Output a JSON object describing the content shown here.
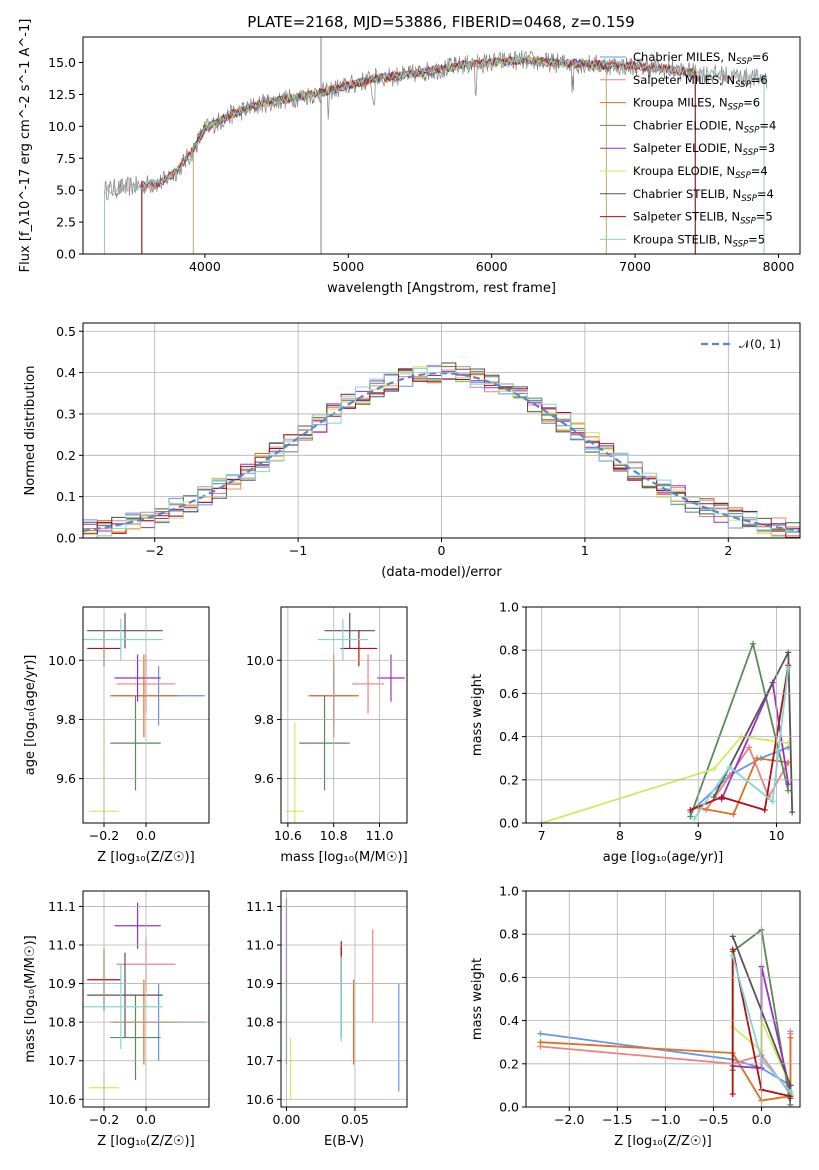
{
  "title": "PLATE=2168, MJD=53886, FIBERID=0468, z=0.159",
  "colors": [
    "#6495ed",
    "#f08080",
    "#e07020",
    "#5a8a5a",
    "#9b30c0",
    "#d4e860",
    "#555555",
    "#b01010",
    "#80d8d8"
  ],
  "chart_data": [
    {
      "id": "spectrum",
      "type": "line",
      "xlabel": "wavelength [Angstrom, rest frame]",
      "ylabel": "Flux [f_λ10^-17 erg cm^-2 s^-1 A^-1]",
      "xlim": [
        3150,
        8150
      ],
      "ylim": [
        0,
        17
      ],
      "xticks": [
        "4000",
        "5000",
        "6000",
        "7000",
        "8000"
      ],
      "yticks": [
        "0.0",
        "2.5",
        "5.0",
        "7.5",
        "10.0",
        "12.5",
        "15.0"
      ],
      "grid": false,
      "legend_position": "right",
      "legend": [
        {
          "label": "Chabrier MILES, N",
          "sub": "SSP",
          "tail": "=6"
        },
        {
          "label": "Salpeter MILES, N",
          "sub": "SSP",
          "tail": "=6"
        },
        {
          "label": "Kroupa MILES, N",
          "sub": "SSP",
          "tail": "=6"
        },
        {
          "label": "Chabrier ELODIE, N",
          "sub": "SSP",
          "tail": "=4"
        },
        {
          "label": "Salpeter ELODIE, N",
          "sub": "SSP",
          "tail": "=3"
        },
        {
          "label": "Kroupa ELODIE, N",
          "sub": "SSP",
          "tail": "=4"
        },
        {
          "label": "Chabrier STELIB, N",
          "sub": "SSP",
          "tail": "=4"
        },
        {
          "label": "Salpeter STELIB, N",
          "sub": "SSP",
          "tail": "=5"
        },
        {
          "label": "Kroupa STELIB, N",
          "sub": "SSP",
          "tail": "=5"
        }
      ],
      "continuum": [
        [
          3300,
          5.0
        ],
        [
          3500,
          5.3
        ],
        [
          3700,
          5.6
        ],
        [
          3800,
          6.5
        ],
        [
          3900,
          7.8
        ],
        [
          4000,
          9.8
        ],
        [
          4200,
          11.0
        ],
        [
          4400,
          11.8
        ],
        [
          4600,
          12.2
        ],
        [
          4800,
          12.6
        ],
        [
          5000,
          13.2
        ],
        [
          5200,
          13.8
        ],
        [
          5400,
          14.0
        ],
        [
          5600,
          14.4
        ],
        [
          5800,
          14.8
        ],
        [
          6000,
          15.0
        ],
        [
          6200,
          15.2
        ],
        [
          6400,
          15.0
        ],
        [
          6600,
          14.9
        ],
        [
          6800,
          14.8
        ],
        [
          7000,
          14.7
        ],
        [
          7200,
          14.5
        ],
        [
          7400,
          14.2
        ],
        [
          7600,
          14.0
        ],
        [
          7800,
          13.8
        ],
        [
          7900,
          13.7
        ]
      ],
      "model_ranges": [
        [
          3560,
          7420
        ],
        [
          3300,
          7900
        ],
        [
          3560,
          7420
        ],
        [
          3920,
          6800
        ],
        [
          3920,
          6800
        ],
        [
          3920,
          6800
        ],
        [
          3560,
          7420
        ],
        [
          3560,
          7420
        ],
        [
          3300,
          7900
        ]
      ],
      "spike_x": 4810
    },
    {
      "id": "residuals",
      "type": "line",
      "xlabel": "(data-model)/error",
      "ylabel": "Normed distribution",
      "xlim": [
        -2.5,
        2.5
      ],
      "ylim": [
        0,
        0.52
      ],
      "xticks": [
        "−2",
        "−1",
        "0",
        "1",
        "2"
      ],
      "yticks": [
        "0.0",
        "0.1",
        "0.2",
        "0.3",
        "0.4",
        "0.5"
      ],
      "grid": true,
      "legend_position": "top-right",
      "series_name": "𝒩(0, 1)"
    },
    {
      "id": "age-vs-z",
      "type": "scatter",
      "xlabel": "Z [log₁₀(Z/Z☉)]",
      "ylabel": "age [log₁₀(age/yr)]",
      "xlim": [
        -0.3,
        0.3
      ],
      "ylim": [
        9.45,
        10.18
      ],
      "xticks": [
        "−0.2",
        "0.0"
      ],
      "yticks": [
        "9.6",
        "9.8",
        "10.0"
      ],
      "grid": true,
      "points": [
        {
          "x": 0.06,
          "y": 9.88,
          "xerr": 0.22,
          "yerr": 0.1
        },
        {
          "x": 0.0,
          "y": 9.92,
          "xerr": 0.14,
          "yerr": 0.1
        },
        {
          "x": -0.01,
          "y": 9.88,
          "xerr": 0.16,
          "yerr": 0.14
        },
        {
          "x": -0.05,
          "y": 9.72,
          "xerr": 0.12,
          "yerr": 0.16
        },
        {
          "x": -0.04,
          "y": 9.94,
          "xerr": 0.11,
          "yerr": 0.08
        },
        {
          "x": -0.2,
          "y": 9.49,
          "xerr": 0.07,
          "yerr": 0.3
        },
        {
          "x": -0.1,
          "y": 10.1,
          "xerr": 0.18,
          "yerr": 0.06
        },
        {
          "x": -0.2,
          "y": 10.04,
          "xerr": 0.08,
          "yerr": 0.06
        },
        {
          "x": -0.12,
          "y": 10.07,
          "xerr": 0.2,
          "yerr": 0.07
        }
      ]
    },
    {
      "id": "age-vs-mass",
      "type": "scatter",
      "xlabel": "mass [log₁₀(M/M☉)]",
      "ylabel": "",
      "xlim": [
        10.57,
        11.12
      ],
      "ylim": [
        9.45,
        10.18
      ],
      "xticks": [
        "10.6",
        "10.8",
        "11.0"
      ],
      "yticks": [
        "9.6",
        "9.8",
        "10.0"
      ],
      "grid": true,
      "points": [
        {
          "x": 10.8,
          "y": 9.88,
          "xerr": 0.1,
          "yerr": 0.1
        },
        {
          "x": 10.95,
          "y": 9.92,
          "xerr": 0.07,
          "yerr": 0.1
        },
        {
          "x": 10.8,
          "y": 9.88,
          "xerr": 0.11,
          "yerr": 0.14
        },
        {
          "x": 10.76,
          "y": 9.72,
          "xerr": 0.11,
          "yerr": 0.16
        },
        {
          "x": 11.05,
          "y": 9.94,
          "xerr": 0.06,
          "yerr": 0.08
        },
        {
          "x": 10.63,
          "y": 9.49,
          "xerr": 0.04,
          "yerr": 0.3
        },
        {
          "x": 10.87,
          "y": 10.1,
          "xerr": 0.11,
          "yerr": 0.06
        },
        {
          "x": 10.91,
          "y": 10.04,
          "xerr": 0.08,
          "yerr": 0.06
        },
        {
          "x": 10.84,
          "y": 10.07,
          "xerr": 0.11,
          "yerr": 0.07
        }
      ]
    },
    {
      "id": "weight-vs-age",
      "type": "line",
      "xlabel": "age [log₁₀(age/yr)]",
      "ylabel": "mass weight",
      "xlim": [
        6.8,
        10.3
      ],
      "ylim": [
        0,
        1.0
      ],
      "xticks": [
        "7",
        "8",
        "9",
        "10"
      ],
      "yticks": [
        "0.0",
        "0.2",
        "0.4",
        "0.6",
        "0.8",
        "1.0"
      ],
      "grid": true,
      "series": [
        {
          "x": [
            8.9,
            9.4,
            9.8,
            10.15
          ],
          "y": [
            0.05,
            0.22,
            0.3,
            0.35
          ]
        },
        {
          "x": [
            9.1,
            9.65,
            9.9,
            10.15
          ],
          "y": [
            0.06,
            0.35,
            0.12,
            0.28
          ]
        },
        {
          "x": [
            9.0,
            9.45,
            9.75,
            10.15
          ],
          "y": [
            0.07,
            0.04,
            0.3,
            0.28
          ]
        },
        {
          "x": [
            8.9,
            9.7,
            10.15
          ],
          "y": [
            0.03,
            0.83,
            0.15
          ]
        },
        {
          "x": [
            9.3,
            9.95,
            10.15
          ],
          "y": [
            0.11,
            0.65,
            0.18
          ]
        },
        {
          "x": [
            7.0,
            9.2,
            9.55,
            10.15
          ],
          "y": [
            0.0,
            0.25,
            0.4,
            0.37
          ]
        },
        {
          "x": [
            9.2,
            10.15,
            10.2
          ],
          "y": [
            0.12,
            0.79,
            0.05
          ]
        },
        {
          "x": [
            8.9,
            9.3,
            9.85,
            10.15
          ],
          "y": [
            0.06,
            0.12,
            0.06,
            0.73
          ]
        },
        {
          "x": [
            8.95,
            9.4,
            9.95,
            10.15
          ],
          "y": [
            0.02,
            0.26,
            0.1,
            0.72
          ]
        }
      ]
    },
    {
      "id": "mass-vs-z",
      "type": "scatter",
      "xlabel": "Z [log₁₀(Z/Z☉)]",
      "ylabel": "mass [log₁₀(M/M☉)]",
      "xlim": [
        -0.3,
        0.3
      ],
      "ylim": [
        10.58,
        11.14
      ],
      "xticks": [
        "−0.2",
        "0.0"
      ],
      "yticks": [
        "10.6",
        "10.7",
        "10.8",
        "10.9",
        "11.0",
        "11.1"
      ],
      "grid": true,
      "points": [
        {
          "x": 0.06,
          "y": 10.8,
          "xerr": 0.22,
          "yerr": 0.1
        },
        {
          "x": 0.0,
          "y": 10.95,
          "xerr": 0.14,
          "yerr": 0.07
        },
        {
          "x": -0.01,
          "y": 10.8,
          "xerr": 0.16,
          "yerr": 0.11
        },
        {
          "x": -0.05,
          "y": 10.76,
          "xerr": 0.12,
          "yerr": 0.11
        },
        {
          "x": -0.04,
          "y": 11.05,
          "xerr": 0.11,
          "yerr": 0.06
        },
        {
          "x": -0.2,
          "y": 10.63,
          "xerr": 0.07,
          "yerr": 0.04
        },
        {
          "x": -0.1,
          "y": 10.87,
          "xerr": 0.18,
          "yerr": 0.11
        },
        {
          "x": -0.2,
          "y": 10.91,
          "xerr": 0.08,
          "yerr": 0.08
        },
        {
          "x": -0.12,
          "y": 10.84,
          "xerr": 0.2,
          "yerr": 0.11
        }
      ]
    },
    {
      "id": "mass-vs-ebv",
      "type": "scatter",
      "xlabel": "E(B-V)",
      "ylabel": "",
      "xlim": [
        -0.004,
        0.088
      ],
      "ylim": [
        10.58,
        11.14
      ],
      "xticks": [
        "0.00",
        "0.05"
      ],
      "yticks": [
        "10.6",
        "10.7",
        "10.8",
        "10.9",
        "11.0",
        "11.1"
      ],
      "grid": true,
      "points": [
        {
          "x": 0.082,
          "y": 10.76,
          "xerr": 0,
          "yerr": 0.14
        },
        {
          "x": 0.063,
          "y": 10.92,
          "xerr": 0,
          "yerr": 0.12
        },
        {
          "x": 0.049,
          "y": 10.8,
          "xerr": 0,
          "yerr": 0.11
        },
        {
          "x": 0.0,
          "y": 10.8,
          "xerr": 0,
          "yerr": 0.11
        },
        {
          "x": 0.0,
          "y": 11.01,
          "xerr": 0,
          "yerr": 0.11
        },
        {
          "x": 0.003,
          "y": 10.68,
          "xerr": 0,
          "yerr": 0.08
        },
        {
          "x": 0.04,
          "y": 10.88,
          "xerr": 0,
          "yerr": 0.12
        },
        {
          "x": 0.04,
          "y": 10.95,
          "xerr": 0,
          "yerr": 0.06
        },
        {
          "x": 0.04,
          "y": 10.86,
          "xerr": 0,
          "yerr": 0.11
        }
      ]
    },
    {
      "id": "weight-vs-z",
      "type": "line",
      "xlabel": "Z [log₁₀(Z/Z☉)]",
      "ylabel": "mass weight",
      "xlim": [
        -2.45,
        0.4
      ],
      "ylim": [
        0,
        1.0
      ],
      "xticks": [
        "−2.0",
        "−1.5",
        "−1.0",
        "−0.5",
        "0.0"
      ],
      "yticks": [
        "0.0",
        "0.2",
        "0.4",
        "0.6",
        "0.8",
        "1.0"
      ],
      "grid": true,
      "series": [
        {
          "x": [
            -2.3,
            -0.3,
            0.0,
            0.3,
            0.3
          ],
          "y": [
            0.34,
            0.22,
            0.18,
            0.1,
            0.34
          ]
        },
        {
          "x": [
            -2.3,
            -0.3,
            0.0,
            0.3,
            0.3
          ],
          "y": [
            0.28,
            0.2,
            0.24,
            0.06,
            0.35
          ]
        },
        {
          "x": [
            -2.3,
            -0.3,
            0.0,
            0.3,
            0.3
          ],
          "y": [
            0.3,
            0.25,
            0.03,
            0.05,
            0.32
          ]
        },
        {
          "x": [
            -0.3,
            -0.3,
            0.0,
            0.3
          ],
          "y": [
            0.17,
            0.72,
            0.82,
            0.01
          ]
        },
        {
          "x": [
            -0.3,
            0.0,
            0.0,
            0.3
          ],
          "y": [
            0.19,
            0.18,
            0.65,
            0.07
          ]
        },
        {
          "x": [
            -0.3,
            0.0,
            0.0,
            0.3
          ],
          "y": [
            0.37,
            0.26,
            0.4,
            0.1
          ]
        },
        {
          "x": [
            -0.3,
            0.3,
            0.3
          ],
          "y": [
            0.79,
            0.1,
            0.04
          ]
        },
        {
          "x": [
            -0.3,
            -0.3,
            0.0,
            0.3
          ],
          "y": [
            0.06,
            0.73,
            0.08,
            0.05
          ]
        },
        {
          "x": [
            -0.3,
            0.0,
            0.3
          ],
          "y": [
            0.7,
            0.22,
            0.07
          ]
        }
      ]
    }
  ]
}
